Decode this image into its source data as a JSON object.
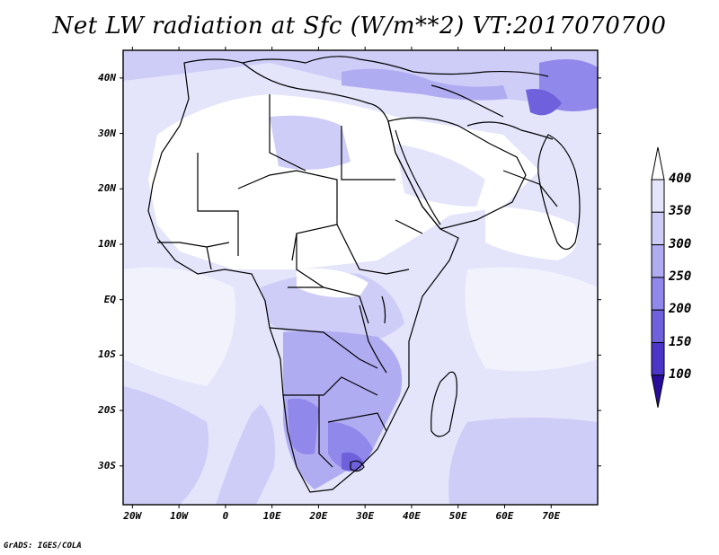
{
  "title": "Net LW radiation at Sfc (W/m**2) VT:2017070700",
  "footer": "GrADS: IGES/COLA",
  "map": {
    "lat_labels": [
      "40N",
      "30N",
      "20N",
      "10N",
      "EQ",
      "10S",
      "20S",
      "30S"
    ],
    "lat_values": [
      40,
      30,
      20,
      10,
      0,
      -10,
      -20,
      -30
    ],
    "lon_labels": [
      "20W",
      "10W",
      "0",
      "10E",
      "20E",
      "30E",
      "40E",
      "50E",
      "60E",
      "70E"
    ],
    "lon_values": [
      -20,
      -10,
      0,
      10,
      20,
      30,
      40,
      50,
      60,
      70
    ],
    "lon_range": [
      -22,
      80
    ],
    "lat_range": [
      -37,
      45
    ]
  },
  "colorbar": {
    "levels": [
      "400",
      "350",
      "300",
      "250",
      "200",
      "150",
      "100"
    ],
    "colors": [
      "#ffffff",
      "#e4e4fb",
      "#cdcdf7",
      "#b0acf2",
      "#9088ea",
      "#6f60dc",
      "#4b34c8",
      "#2a0c9c"
    ]
  }
}
